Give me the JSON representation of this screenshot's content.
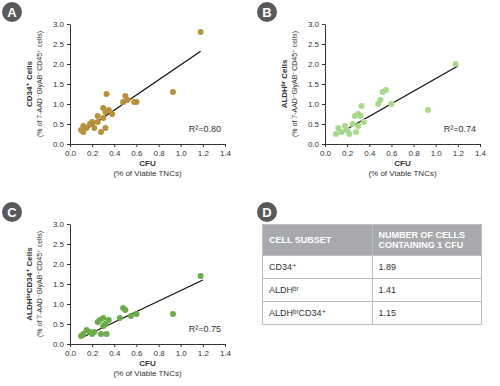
{
  "chart_data": [
    {
      "type": "scatter",
      "panel": "A",
      "color": "#b8913a",
      "x": [
        0.1,
        0.12,
        0.12,
        0.15,
        0.18,
        0.2,
        0.22,
        0.25,
        0.25,
        0.28,
        0.3,
        0.3,
        0.32,
        0.32,
        0.33,
        0.35,
        0.38,
        0.48,
        0.5,
        0.52,
        0.58,
        0.6,
        0.93,
        1.18
      ],
      "values": [
        0.35,
        0.3,
        0.45,
        0.4,
        0.5,
        0.55,
        0.4,
        0.7,
        0.55,
        0.3,
        0.9,
        0.65,
        0.8,
        0.4,
        1.25,
        0.85,
        0.75,
        1.05,
        1.2,
        1.1,
        1.05,
        1.05,
        1.3,
        2.8
      ],
      "trendline": {
        "x": [
          0.1,
          1.18
        ],
        "values": [
          0.28,
          2.32
        ]
      },
      "annotation": "R²=0.80",
      "xlabel": [
        "CFU",
        "(% of Viable TNCs)"
      ],
      "ylabel": [
        "CD34⁺ Cells",
        "(% of 7-AAD⁻GlyAB⁻CD45⁺ cells)"
      ],
      "xlim": [
        0,
        1.4
      ],
      "xticks": [
        {
          "value": 0,
          "label": "0.0"
        },
        0.2,
        0.4,
        0.6,
        0.8,
        {
          "value": 1,
          "label": "1.0"
        },
        1.2,
        1.4
      ],
      "ylim": [
        0,
        3
      ],
      "yticks": [
        {
          "value": 0,
          "label": "0.0"
        },
        0.5,
        {
          "value": 1,
          "label": "1.0"
        },
        1.5,
        {
          "value": 2,
          "label": "2.0"
        },
        2.5,
        {
          "value": 3,
          "label": "3.0"
        }
      ]
    },
    {
      "type": "scatter",
      "panel": "B",
      "color": "#a9d98a",
      "x": [
        0.1,
        0.12,
        0.15,
        0.18,
        0.2,
        0.22,
        0.25,
        0.27,
        0.28,
        0.3,
        0.3,
        0.32,
        0.33,
        0.35,
        0.48,
        0.5,
        0.52,
        0.55,
        0.6,
        0.93,
        1.18
      ],
      "values": [
        0.25,
        0.4,
        0.3,
        0.45,
        0.35,
        0.25,
        0.5,
        0.7,
        0.3,
        0.75,
        0.45,
        0.7,
        0.95,
        0.55,
        1.0,
        1.1,
        1.3,
        1.35,
        1.0,
        0.85,
        2.0
      ],
      "trendline": {
        "x": [
          0.1,
          1.2
        ],
        "values": [
          0.22,
          1.95
        ]
      },
      "annotation": "R²=0.74",
      "xlabel": [
        "CFU",
        "(% of Viable TNCs)"
      ],
      "ylabel": [
        "ALDHᵇʳ Cells",
        "(% of 7-AAD⁻GlyAB⁻CD45⁺ cells)"
      ],
      "xlim": [
        0,
        1.4
      ],
      "xticks": [
        {
          "value": 0,
          "label": "0.0"
        },
        0.2,
        0.4,
        0.6,
        0.8,
        {
          "value": 1,
          "label": "1.0"
        },
        1.2,
        1.4
      ],
      "ylim": [
        0,
        3
      ],
      "yticks": [
        {
          "value": 0,
          "label": "0.0"
        },
        0.5,
        {
          "value": 1,
          "label": "1.0"
        },
        1.5,
        {
          "value": 2,
          "label": "2.0"
        },
        2.5,
        {
          "value": 3,
          "label": "3.0"
        }
      ]
    },
    {
      "type": "scatter",
      "panel": "C",
      "color": "#6aab4a",
      "x": [
        0.1,
        0.12,
        0.15,
        0.18,
        0.2,
        0.22,
        0.25,
        0.27,
        0.28,
        0.3,
        0.3,
        0.32,
        0.33,
        0.35,
        0.45,
        0.48,
        0.5,
        0.55,
        0.6,
        0.93,
        1.18
      ],
      "values": [
        0.2,
        0.25,
        0.35,
        0.3,
        0.25,
        0.3,
        0.55,
        0.6,
        0.25,
        0.65,
        0.45,
        0.5,
        0.25,
        0.6,
        0.65,
        0.9,
        0.85,
        0.7,
        0.75,
        0.75,
        1.7
      ],
      "trendline": {
        "x": [
          0.1,
          1.2
        ],
        "values": [
          0.15,
          1.6
        ]
      },
      "annotation": "R²=0.75",
      "xlabel": [
        "CFU",
        "(% of Viable TNCs)"
      ],
      "ylabel": [
        "ALDHᵇʳCD34⁺ Cells",
        "(% of 7-AAD⁻GlyAB⁻CD45⁺ cells)"
      ],
      "xlim": [
        0,
        1.4
      ],
      "xticks": [
        {
          "value": 0,
          "label": "0.0"
        },
        0.2,
        0.4,
        0.6,
        0.8,
        {
          "value": 1,
          "label": "1.0"
        },
        1.2,
        1.4
      ],
      "ylim": [
        0,
        3
      ],
      "yticks": [
        {
          "value": 0,
          "label": "0.0"
        },
        0.5,
        {
          "value": 1,
          "label": "1.0"
        },
        1.5,
        {
          "value": 2,
          "label": "2.0"
        },
        2.5,
        {
          "value": 3,
          "label": "3.0"
        }
      ]
    }
  ],
  "table": {
    "panel": "D",
    "header": [
      "CELL SUBSET",
      "NUMBER OF CELLS CONTAINING 1 CFU"
    ],
    "rows": [
      [
        "CD34⁺",
        1.89
      ],
      [
        "ALDHᵇʳ",
        1.41
      ],
      [
        "ALDHᵇʳCD34⁺",
        1.15
      ]
    ]
  }
}
